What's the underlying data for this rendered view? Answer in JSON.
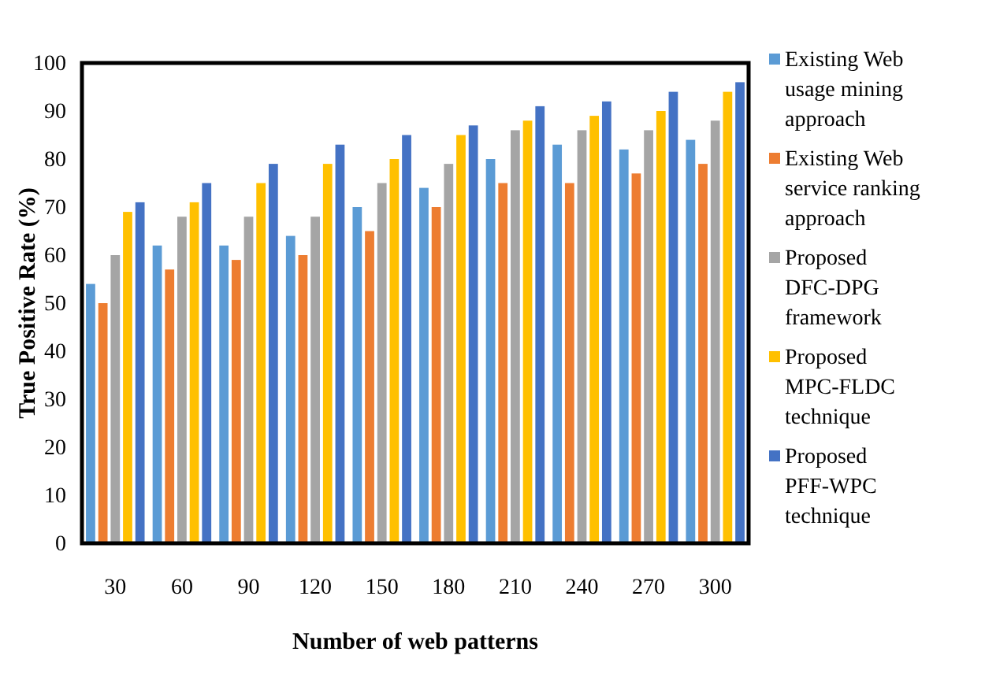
{
  "chart_data": {
    "type": "bar",
    "xlabel": "Number of web patterns",
    "ylabel": "True Positive Rate (%)",
    "categories": [
      "30",
      "60",
      "90",
      "120",
      "150",
      "180",
      "210",
      "240",
      "270",
      "300"
    ],
    "ylim": [
      0,
      100
    ],
    "yticks": [
      0,
      10,
      20,
      30,
      40,
      50,
      60,
      70,
      80,
      90,
      100
    ],
    "grid": false,
    "legend": "right",
    "series": [
      {
        "name": "Existing Web usage mining approach",
        "color": "#5b9bd5",
        "values": [
          54,
          62,
          62,
          64,
          70,
          74,
          80,
          83,
          82,
          84
        ]
      },
      {
        "name": "Existing Web service ranking approach",
        "color": "#ed7d31",
        "values": [
          50,
          57,
          59,
          60,
          65,
          70,
          75,
          75,
          77,
          79
        ]
      },
      {
        "name": "Proposed DFC-DPG framework",
        "color": "#a5a5a5",
        "values": [
          60,
          68,
          68,
          68,
          75,
          79,
          86,
          86,
          86,
          88
        ]
      },
      {
        "name": "Proposed MPC-FLDC technique",
        "color": "#ffc000",
        "values": [
          69,
          71,
          75,
          79,
          80,
          85,
          88,
          89,
          90,
          94
        ]
      },
      {
        "name": "Proposed PFF-WPC technique",
        "color": "#4472c4",
        "values": [
          71,
          75,
          79,
          83,
          85,
          87,
          91,
          92,
          94,
          96
        ]
      }
    ]
  }
}
